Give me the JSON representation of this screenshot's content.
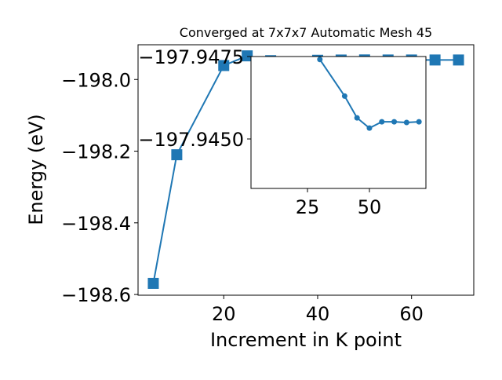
{
  "chart_data": [
    {
      "type": "line",
      "title": "Converged at 7x7x7 Automatic Mesh 45",
      "xlabel": "Increment in K point",
      "ylabel": "Energy (eV)",
      "x": [
        5,
        10,
        20,
        25,
        30,
        40,
        45,
        50,
        55,
        60,
        65,
        70
      ],
      "series": [
        {
          "color": "#1f77b4",
          "marker": "square",
          "values": [
            -198.569,
            -198.21,
            -197.961,
            -197.934,
            -197.9474,
            -197.9463,
            -197.9456,
            -197.9453,
            -197.9455,
            -197.9455,
            -197.9455,
            -197.9455
          ]
        }
      ],
      "xlim": [
        1.75,
        73.25
      ],
      "ylim": [
        -198.602,
        -197.903
      ],
      "xticks": [
        20,
        40,
        60
      ],
      "yticks": [
        {
          "value": -198.6,
          "label": "−198.6"
        },
        {
          "value": -198.4,
          "label": "−198.4"
        },
        {
          "value": -198.2,
          "label": "−198.2"
        },
        {
          "value": -198.0,
          "label": "−198.0"
        }
      ]
    },
    {
      "type": "line",
      "x": [
        30,
        40,
        45,
        50,
        55,
        60,
        65,
        70
      ],
      "series": [
        {
          "color": "#1f77b4",
          "marker": "circle",
          "values": [
            -197.94741,
            -197.9463,
            -197.94564,
            -197.94533,
            -197.94552,
            -197.94552,
            -197.9455,
            -197.94552
          ]
        }
      ],
      "xlim": [
        2.2,
        72.8
      ],
      "ylim": [
        -197.9435,
        -197.9475
      ],
      "xticks": [
        25,
        50
      ],
      "yticks": [
        {
          "value": -197.9475,
          "label": "−197.9475"
        },
        {
          "value": -197.945,
          "label": "−197.9450"
        }
      ]
    }
  ]
}
